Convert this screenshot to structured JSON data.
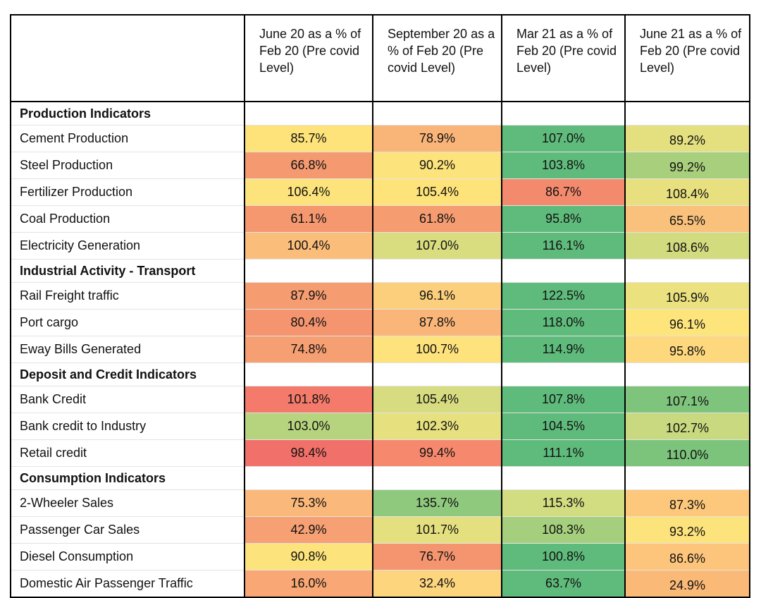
{
  "chart_data": {
    "type": "table",
    "columns": [
      "",
      "June 20 as a % of Feb 20 (Pre covid Level)",
      "September 20 as a % of Feb 20 (Pre covid Level)",
      "Mar 21 as a % of Feb 20 (Pre covid Level)",
      "June 21 as a % of Feb 20 (Pre covid Level)"
    ],
    "rows": [
      {
        "kind": "section",
        "label": "Production Indicators"
      },
      {
        "kind": "data",
        "label": "Cement Production",
        "values": [
          "85.7%",
          "78.9%",
          "107.0%",
          "89.2%"
        ],
        "colors": [
          "#fde37a",
          "#f9b478",
          "#5fbb7b",
          "#e4e07f"
        ]
      },
      {
        "kind": "data",
        "label": "Steel Production",
        "values": [
          "66.8%",
          "90.2%",
          "103.8%",
          "99.2%"
        ],
        "colors": [
          "#f59a70",
          "#fde37b",
          "#5fbb7b",
          "#a8cf7c"
        ]
      },
      {
        "kind": "data",
        "label": "Fertilizer Production",
        "values": [
          "106.4%",
          "105.4%",
          "86.7%",
          "108.4%"
        ],
        "colors": [
          "#fde37b",
          "#fde37a",
          "#f48a6d",
          "#e8e07f"
        ]
      },
      {
        "kind": "data",
        "label": "Coal Production",
        "values": [
          "61.1%",
          "61.8%",
          "95.8%",
          "65.5%"
        ],
        "colors": [
          "#f5986f",
          "#f59c71",
          "#5fbb7b",
          "#f9c17b"
        ]
      },
      {
        "kind": "data",
        "label": "Electricity Generation",
        "values": [
          "100.4%",
          "107.0%",
          "116.1%",
          "108.6%"
        ],
        "colors": [
          "#fbbd7a",
          "#d9dd80",
          "#5fbb7b",
          "#d3db7f"
        ]
      },
      {
        "kind": "section",
        "label": "Industrial Activity - Transport"
      },
      {
        "kind": "data",
        "label": "Rail Freight traffic",
        "values": [
          "87.9%",
          "96.1%",
          "122.5%",
          "105.9%"
        ],
        "colors": [
          "#f69c71",
          "#fccf7c",
          "#5fbb7b",
          "#ebe17f"
        ]
      },
      {
        "kind": "data",
        "label": "Port cargo",
        "values": [
          "80.4%",
          "87.8%",
          "118.0%",
          "96.1%"
        ],
        "colors": [
          "#f59570",
          "#fab679",
          "#5fbb7b",
          "#fde57c"
        ]
      },
      {
        "kind": "data",
        "label": "Eway Bills Generated",
        "values": [
          "74.8%",
          "100.7%",
          "114.9%",
          "95.8%"
        ],
        "colors": [
          "#f69f72",
          "#fee27c",
          "#5fbb7b",
          "#fed87c"
        ]
      },
      {
        "kind": "section",
        "label": "Deposit and Credit Indicators"
      },
      {
        "kind": "data",
        "label": "Bank Credit",
        "values": [
          "101.8%",
          "105.4%",
          "107.8%",
          "107.1%"
        ],
        "colors": [
          "#f47b6b",
          "#d8dc80",
          "#5fbb7b",
          "#7fc47c"
        ]
      },
      {
        "kind": "data",
        "label": "Bank credit to Industry",
        "values": [
          "103.0%",
          "102.3%",
          "104.5%",
          "102.7%"
        ],
        "colors": [
          "#b6d47e",
          "#e6e07f",
          "#5fbb7b",
          "#c8d97f"
        ]
      },
      {
        "kind": "data",
        "label": "Retail credit",
        "values": [
          "98.4%",
          "99.4%",
          "111.1%",
          "110.0%"
        ],
        "colors": [
          "#f2706a",
          "#f6896d",
          "#5fbb7b",
          "#7cc47c"
        ]
      },
      {
        "kind": "section",
        "label": "Consumption Indicators"
      },
      {
        "kind": "data",
        "label": "2-Wheeler Sales",
        "values": [
          "75.3%",
          "135.7%",
          "115.3%",
          "87.3%"
        ],
        "colors": [
          "#fab97a",
          "#8fc97d",
          "#d2dc80",
          "#fdc87b"
        ]
      },
      {
        "kind": "data",
        "label": "Passenger Car Sales",
        "values": [
          "42.9%",
          "101.7%",
          "108.3%",
          "93.2%"
        ],
        "colors": [
          "#f6a073",
          "#e5e07f",
          "#a5cf7d",
          "#fde37b"
        ]
      },
      {
        "kind": "data",
        "label": "Diesel Consumption",
        "values": [
          "90.8%",
          "76.7%",
          "100.8%",
          "86.6%"
        ],
        "colors": [
          "#fde37b",
          "#f5956f",
          "#5fbb7b",
          "#fdc57b"
        ]
      },
      {
        "kind": "data",
        "label": "Domestic Air Passenger Traffic",
        "values": [
          "16.0%",
          "32.4%",
          "63.7%",
          "24.9%"
        ],
        "colors": [
          "#f8a775",
          "#fdd57d",
          "#5fbb7b",
          "#fbb978"
        ]
      }
    ]
  }
}
